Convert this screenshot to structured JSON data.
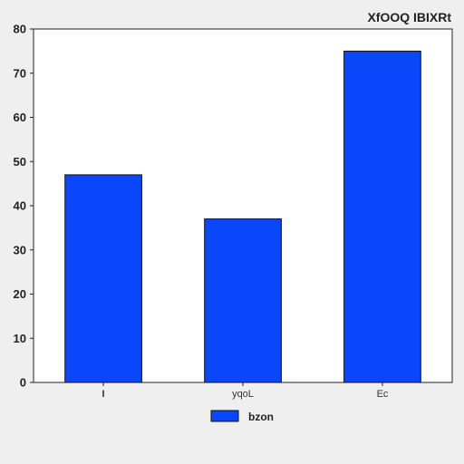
{
  "chart_data": {
    "type": "bar",
    "title": "XfOOQ IBIXRt",
    "categories": [
      "I",
      "yqoL",
      "Ec"
    ],
    "series": [
      {
        "name": "bzon",
        "values": [
          47,
          37,
          75
        ],
        "color": "#0a47fb"
      }
    ],
    "xlabel": "",
    "ylabel": "",
    "ylim": [
      0,
      80
    ],
    "yticks": [
      0,
      10,
      20,
      30,
      40,
      50,
      60,
      70,
      80
    ],
    "grid": false,
    "legend_position": "bottom-center",
    "colors": {
      "background": "#efefef",
      "plot_background": "#ffffff",
      "bar_stroke": "#111111"
    }
  }
}
